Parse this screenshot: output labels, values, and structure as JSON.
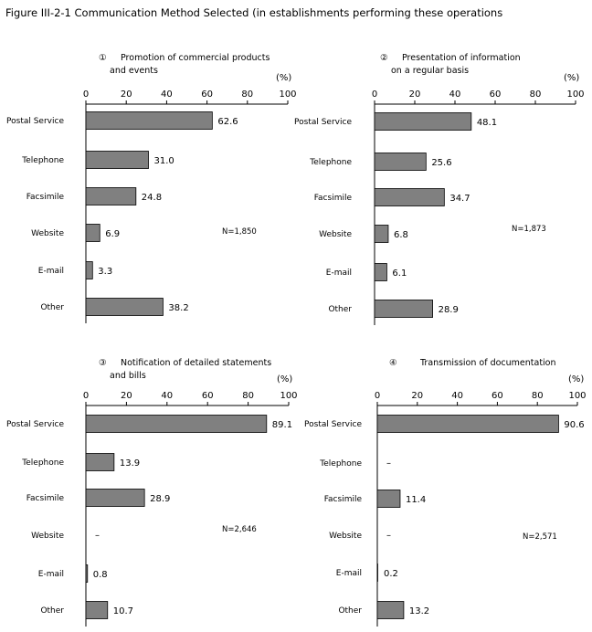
{
  "title": "Figure III-2-1 Communication Method Selected (in establishments performing these operations",
  "chart_data": [
    {
      "type": "bar",
      "orientation": "horizontal",
      "title_num": "①",
      "title_lines": [
        "Promotion of commercial products",
        "and events"
      ],
      "unit": "(%)",
      "xlim": [
        0,
        100
      ],
      "ticks": [
        0,
        20,
        40,
        60,
        80,
        100
      ],
      "categories": [
        "Postal Service",
        "Telephone",
        "Facsimile",
        "Website",
        "E-mail",
        "Other"
      ],
      "values": [
        62.6,
        31.0,
        24.8,
        6.9,
        3.3,
        38.2
      ],
      "value_labels": [
        "62.6",
        "31.0",
        "24.8",
        "6.9",
        "3.3",
        "38.2"
      ],
      "n_label": "N=1,850",
      "bar_color": "#808080"
    },
    {
      "type": "bar",
      "orientation": "horizontal",
      "title_num": "②",
      "title_lines": [
        "Presentation of information",
        "on a regular basis"
      ],
      "unit": "(%)",
      "xlim": [
        0,
        100
      ],
      "ticks": [
        0,
        20,
        40,
        60,
        80,
        100
      ],
      "categories": [
        "Postal Service",
        "Telephone",
        "Facsimile",
        "Website",
        "E-mail",
        "Other"
      ],
      "values": [
        48.1,
        25.6,
        34.7,
        6.8,
        6.1,
        28.9
      ],
      "value_labels": [
        "48.1",
        "25.6",
        "34.7",
        "6.8",
        "6.1",
        "28.9"
      ],
      "n_label": "N=1,873",
      "bar_color": "#808080"
    },
    {
      "type": "bar",
      "orientation": "horizontal",
      "title_num": "③",
      "title_lines": [
        "Notification of detailed statements",
        "and bills"
      ],
      "unit": "(%)",
      "xlim": [
        0,
        100
      ],
      "ticks": [
        0,
        20,
        40,
        60,
        80,
        100
      ],
      "categories": [
        "Postal Service",
        "Telephone",
        "Facsimile",
        "Website",
        "E-mail",
        "Other"
      ],
      "values": [
        89.1,
        13.9,
        28.9,
        null,
        0.8,
        10.7
      ],
      "value_labels": [
        "89.1",
        "13.9",
        "28.9",
        "–",
        "0.8",
        "10.7"
      ],
      "n_label": "N=2,646",
      "bar_color": "#808080"
    },
    {
      "type": "bar",
      "orientation": "horizontal",
      "title_num": "④",
      "title_lines": [
        "Transmission of documentation"
      ],
      "unit": "(%)",
      "xlim": [
        0,
        100
      ],
      "ticks": [
        0,
        20,
        40,
        60,
        80,
        100
      ],
      "categories": [
        "Postal Service",
        "Telephone",
        "Facsimile",
        "Website",
        "E-mail",
        "Other"
      ],
      "values": [
        90.6,
        null,
        11.4,
        null,
        0.2,
        13.2
      ],
      "value_labels": [
        "90.6",
        "–",
        "11.4",
        "–",
        "0.2",
        "13.2"
      ],
      "n_label": "N=2,571",
      "bar_color": "#808080"
    }
  ]
}
